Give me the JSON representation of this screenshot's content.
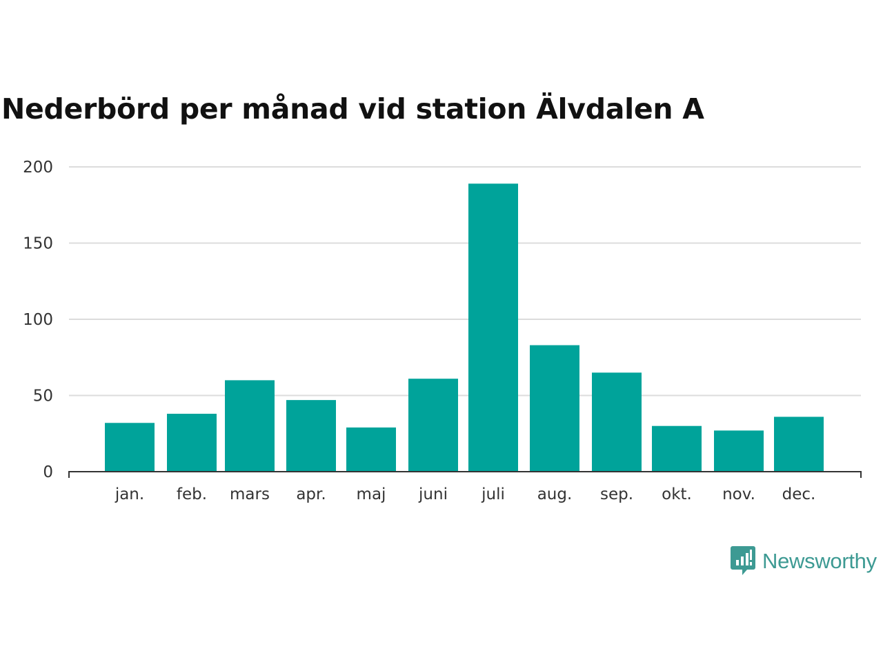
{
  "chart_data": {
    "type": "bar",
    "title": "Nederbörd per månad vid station Älvdalen A",
    "categories": [
      "jan.",
      "feb.",
      "mars",
      "apr.",
      "maj",
      "juni",
      "juli",
      "aug.",
      "sep.",
      "okt.",
      "nov.",
      "dec."
    ],
    "values": [
      32,
      38,
      60,
      47,
      29,
      61,
      189,
      83,
      65,
      30,
      27,
      36
    ],
    "ylim": [
      0,
      200
    ],
    "yticks": [
      0,
      50,
      100,
      150,
      200
    ],
    "xlabel": "",
    "ylabel": "",
    "grid": true,
    "bar_color": "#00a39a",
    "grid_color": "#dcdcdc",
    "axis_color": "#333333"
  },
  "brand": {
    "name": "Newsworthy",
    "icon": "newsworthy-logo-icon",
    "color": "#3d9a93"
  }
}
